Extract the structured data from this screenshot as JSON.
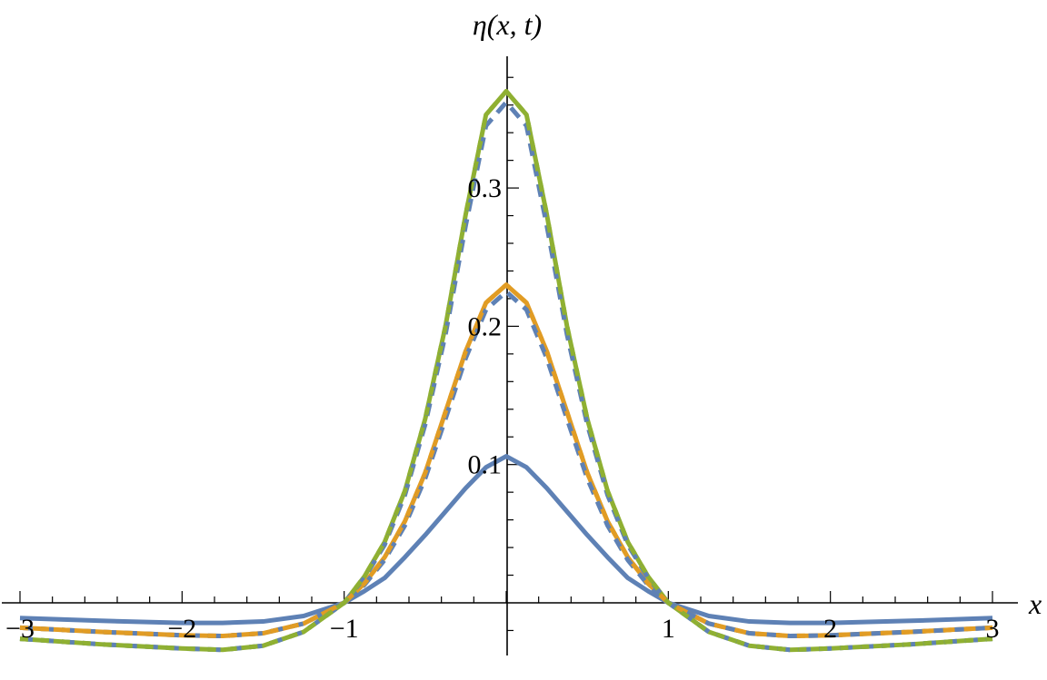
{
  "chart_data": {
    "type": "line",
    "xlabel": "x",
    "ylabel": "η(x, t)",
    "xlim": [
      -3,
      3
    ],
    "ylim": [
      -0.037,
      0.39
    ],
    "x_ticks": [
      {
        "value": -3,
        "label": "−3"
      },
      {
        "value": -2,
        "label": "−2"
      },
      {
        "value": -1,
        "label": "−1"
      },
      {
        "value": 1,
        "label": "1"
      },
      {
        "value": 2,
        "label": "2"
      },
      {
        "value": 3,
        "label": "3"
      }
    ],
    "y_ticks": [
      {
        "value": 0.1,
        "label": "0.1"
      },
      {
        "value": 0.2,
        "label": "0.2"
      },
      {
        "value": 0.3,
        "label": "0.3"
      }
    ],
    "x": [
      -3,
      -2.5,
      -2,
      -1.75,
      -1.5,
      -1.25,
      -1,
      -0.875,
      -0.75,
      -0.625,
      -0.5,
      -0.375,
      -0.25,
      -0.125,
      0,
      0.125,
      0.25,
      0.375,
      0.5,
      0.625,
      0.75,
      0.875,
      1,
      1.25,
      1.5,
      1.75,
      2,
      2.5,
      3
    ],
    "series": [
      {
        "color": "#5e81b5",
        "dash": "solid",
        "values": [
          -0.011,
          -0.013,
          -0.0145,
          -0.0145,
          -0.0135,
          -0.0095,
          0.0,
          0.0085,
          0.018,
          0.033,
          0.049,
          0.066,
          0.083,
          0.098,
          0.106,
          0.098,
          0.083,
          0.066,
          0.049,
          0.033,
          0.018,
          0.0085,
          0.0,
          -0.0095,
          -0.0135,
          -0.0145,
          -0.0145,
          -0.013,
          -0.011
        ]
      },
      {
        "color": "#e19c24",
        "dash": "solid",
        "values": [
          -0.018,
          -0.021,
          -0.0235,
          -0.024,
          -0.022,
          -0.015,
          0.0,
          0.014,
          0.033,
          0.059,
          0.094,
          0.138,
          0.182,
          0.217,
          0.23,
          0.217,
          0.182,
          0.138,
          0.094,
          0.059,
          0.033,
          0.014,
          0.0,
          -0.015,
          -0.022,
          -0.024,
          -0.0235,
          -0.021,
          -0.018
        ]
      },
      {
        "color": "#5e81b5",
        "dash": "dashed",
        "values": [
          -0.018,
          -0.021,
          -0.0235,
          -0.024,
          -0.022,
          -0.015,
          0.0,
          0.013,
          0.031,
          0.056,
          0.09,
          0.133,
          0.177,
          0.212,
          0.225,
          0.212,
          0.177,
          0.133,
          0.09,
          0.056,
          0.031,
          0.013,
          0.0,
          -0.015,
          -0.022,
          -0.024,
          -0.0235,
          -0.021,
          -0.018
        ]
      },
      {
        "color": "#8fb032",
        "dash": "solid",
        "values": [
          -0.026,
          -0.03,
          -0.033,
          -0.034,
          -0.031,
          -0.021,
          0.0,
          0.019,
          0.044,
          0.081,
          0.133,
          0.2,
          0.281,
          0.353,
          0.37,
          0.353,
          0.281,
          0.2,
          0.133,
          0.081,
          0.044,
          0.019,
          0.0,
          -0.021,
          -0.031,
          -0.034,
          -0.033,
          -0.03,
          -0.026
        ]
      },
      {
        "color": "#5e81b5",
        "dash": "dashed",
        "values": [
          -0.026,
          -0.03,
          -0.033,
          -0.034,
          -0.031,
          -0.021,
          0.0,
          0.018,
          0.042,
          0.078,
          0.129,
          0.194,
          0.273,
          0.345,
          0.362,
          0.345,
          0.273,
          0.194,
          0.129,
          0.078,
          0.042,
          0.018,
          0.0,
          -0.021,
          -0.031,
          -0.034,
          -0.033,
          -0.03,
          -0.026
        ]
      },
      {
        "color": "#e19c24",
        "dash": "dashed-overlay",
        "values": [
          -0.018,
          -0.021,
          -0.0235,
          -0.024,
          -0.022,
          -0.015,
          0.0,
          0.014,
          0.033,
          0.059,
          0.094,
          0.138,
          0.182,
          0.217,
          0.23,
          0.217,
          0.182,
          0.138,
          0.094,
          0.059,
          0.033,
          0.014,
          0.0,
          -0.015,
          -0.022,
          -0.024,
          -0.0235,
          -0.021,
          -0.018
        ]
      },
      {
        "color": "#8fb032",
        "dash": "dashed-overlay",
        "values": [
          -0.026,
          -0.03,
          -0.033,
          -0.034,
          -0.031,
          -0.021,
          0.0,
          0.019,
          0.044,
          0.081,
          0.133,
          0.2,
          0.281,
          0.353,
          0.37,
          0.353,
          0.281,
          0.2,
          0.133,
          0.081,
          0.044,
          0.019,
          0.0,
          -0.021,
          -0.031,
          -0.034,
          -0.033,
          -0.03,
          -0.026
        ]
      }
    ],
    "grid": false,
    "legend": "none"
  }
}
